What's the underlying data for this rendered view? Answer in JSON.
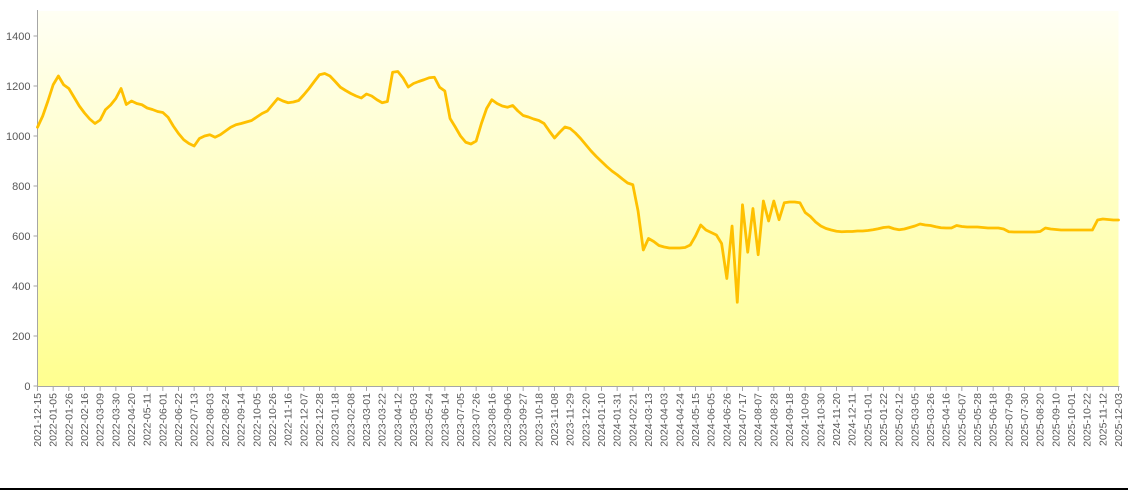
{
  "page": {
    "divider_color": "#000000",
    "background_color": "#FFFFFF"
  },
  "chart_data": {
    "type": "line",
    "title": "",
    "xlabel": "",
    "ylabel": "",
    "grid": false,
    "legend": false,
    "ylim": [
      0,
      1500
    ],
    "yticks": [
      0,
      200,
      400,
      600,
      800,
      1000,
      1200,
      1400
    ],
    "x_tick_labels": [
      "2021-12-15",
      "2022-01-05",
      "2022-01-26",
      "2022-02-16",
      "2022-03-09",
      "2022-03-30",
      "2022-04-20",
      "2022-05-11",
      "2022-06-01",
      "2022-06-22",
      "2022-07-13",
      "2022-08-03",
      "2022-08-24",
      "2022-09-14",
      "2022-10-05",
      "2022-10-26",
      "2022-11-16",
      "2022-12-07",
      "2022-12-28",
      "2023-01-18",
      "2023-02-08",
      "2023-03-01",
      "2023-03-22",
      "2023-04-12",
      "2023-05-03",
      "2023-05-24",
      "2023-06-14",
      "2023-07-05",
      "2023-07-26",
      "2023-08-16",
      "2023-09-06",
      "2023-09-27",
      "2023-10-18",
      "2023-11-08",
      "2023-11-29",
      "2023-12-20",
      "2024-01-10",
      "2024-01-31",
      "2024-02-21",
      "2024-03-13",
      "2024-04-03",
      "2024-04-24",
      "2024-05-15",
      "2024-06-05",
      "2024-06-26",
      "2024-07-17",
      "2024-08-07",
      "2024-08-28",
      "2024-09-18",
      "2024-10-09",
      "2024-10-30",
      "2024-11-20",
      "2024-12-11",
      "2025-01-01",
      "2025-01-22",
      "2025-02-12",
      "2025-03-05",
      "2025-03-26",
      "2025-04-16",
      "2025-05-07",
      "2025-05-28",
      "2025-06-18",
      "2025-07-09",
      "2025-07-30",
      "2025-08-20",
      "2025-09-10",
      "2025-10-01",
      "2025-10-22",
      "2025-11-12",
      "2025-12-03"
    ],
    "points_per_tick_interval": 3,
    "values": [
      1035,
      1080,
      1140,
      1205,
      1240,
      1205,
      1190,
      1155,
      1120,
      1092,
      1068,
      1050,
      1064,
      1105,
      1124,
      1150,
      1190,
      1126,
      1140,
      1130,
      1125,
      1112,
      1106,
      1098,
      1094,
      1075,
      1040,
      1010,
      985,
      970,
      960,
      990,
      1000,
      1005,
      995,
      1005,
      1020,
      1035,
      1045,
      1050,
      1056,
      1062,
      1076,
      1090,
      1100,
      1125,
      1150,
      1140,
      1133,
      1136,
      1142,
      1165,
      1190,
      1218,
      1245,
      1250,
      1240,
      1218,
      1195,
      1182,
      1170,
      1160,
      1152,
      1168,
      1160,
      1145,
      1133,
      1138,
      1255,
      1258,
      1232,
      1196,
      1210,
      1218,
      1225,
      1233,
      1235,
      1195,
      1180,
      1070,
      1036,
      1000,
      975,
      968,
      980,
      1050,
      1110,
      1145,
      1130,
      1120,
      1115,
      1122,
      1100,
      1082,
      1076,
      1068,
      1062,
      1050,
      1020,
      992,
      1015,
      1036,
      1030,
      1012,
      990,
      965,
      940,
      918,
      898,
      878,
      860,
      845,
      828,
      812,
      805,
      700,
      544,
      590,
      578,
      562,
      556,
      552,
      552,
      552,
      554,
      564,
      600,
      644,
      624,
      614,
      604,
      570,
      430,
      640,
      335,
      725,
      535,
      710,
      525,
      740,
      660,
      740,
      665,
      733,
      736,
      736,
      733,
      694,
      678,
      656,
      640,
      630,
      624,
      619,
      617,
      618,
      618,
      620,
      620,
      622,
      625,
      629,
      634,
      636,
      629,
      625,
      628,
      634,
      640,
      648,
      644,
      642,
      637,
      633,
      632,
      632,
      642,
      638,
      636,
      636,
      636,
      634,
      632,
      632,
      632,
      628,
      617,
      616,
      616,
      616,
      616,
      616,
      618,
      632,
      628,
      626,
      624,
      624,
      624,
      624,
      624,
      624,
      624,
      664,
      668,
      666,
      664,
      664
    ],
    "line_color": "#FFC000",
    "plot_bg_gradient_top": "#FFFFF4",
    "plot_bg_gradient_bottom": "#FFFF8F",
    "axis_color": "#A6A6A6",
    "tick_label_color": "#595959"
  }
}
